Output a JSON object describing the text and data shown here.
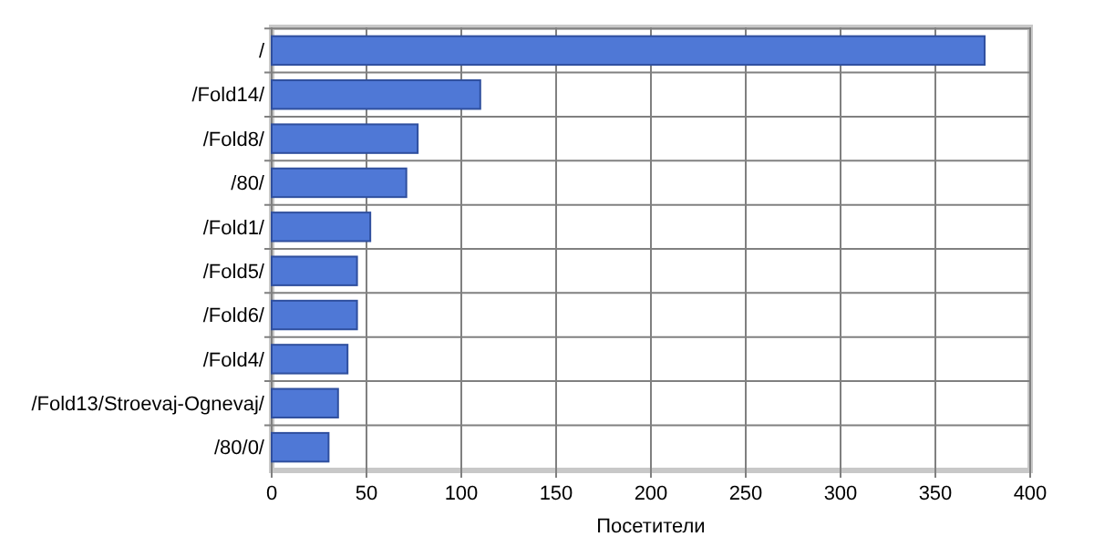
{
  "chart_data": {
    "type": "bar",
    "orientation": "horizontal",
    "xlabel": "Посетители",
    "categories": [
      "/",
      "/Fold14/",
      "/Fold8/",
      "/80/",
      "/Fold1/",
      "/Fold5/",
      "/Fold6/",
      "/Fold4/",
      "/Fold13/Stroevaj-Ognevaj/",
      "/80/0/"
    ],
    "values": [
      376,
      110,
      77,
      71,
      52,
      45,
      45,
      40,
      35,
      30
    ],
    "color": "#4f78d6",
    "xlim": [
      0,
      400
    ],
    "xticks": [
      0,
      50,
      100,
      150,
      200,
      250,
      300,
      350,
      400
    ],
    "grid": true
  }
}
